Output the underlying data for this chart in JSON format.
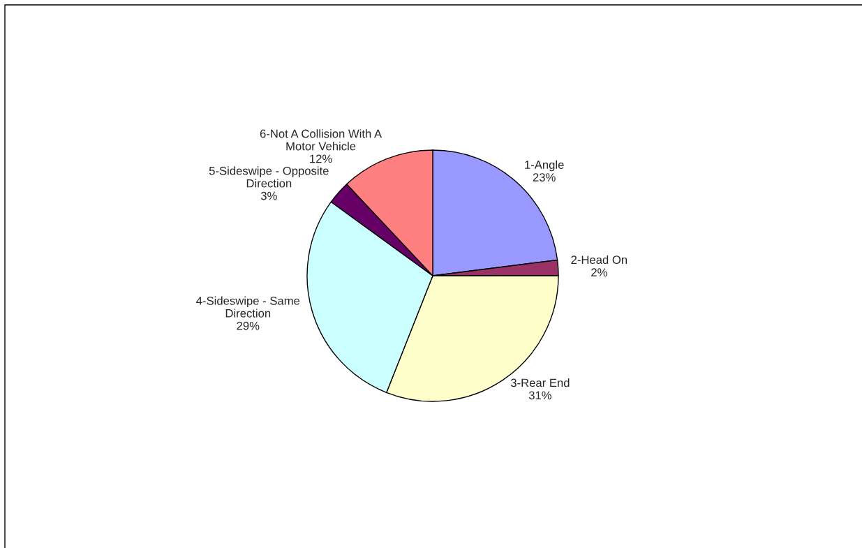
{
  "chart_data": {
    "type": "pie",
    "categories": [
      "1-Angle",
      "2-Head On",
      "3-Rear End",
      "4-Sideswipe - Same Direction",
      "5-Sideswipe - Opposite Direction",
      "6-Not A Collision With A Motor Vehicle"
    ],
    "values": [
      23,
      2,
      31,
      29,
      3,
      12
    ],
    "value_labels": [
      "23%",
      "2%",
      "31%",
      "29%",
      "3%",
      "12%"
    ],
    "colors": [
      "#9999ff",
      "#993366",
      "#ffffcc",
      "#ccffff",
      "#660066",
      "#ff8080"
    ],
    "legend": false
  }
}
